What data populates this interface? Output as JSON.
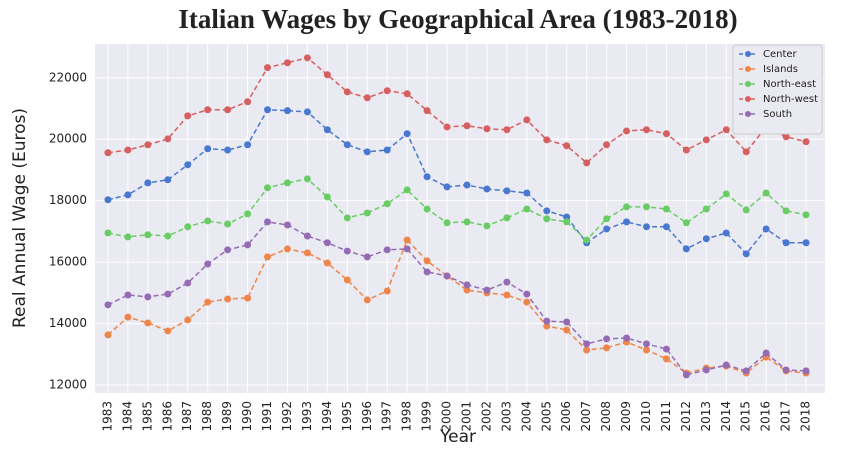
{
  "chart_data": {
    "type": "line",
    "title": "Italian Wages by Geographical Area (1983-2018)",
    "x_label": "Year",
    "y_label": "Real Annual Wage (Euros)",
    "x": [
      1983,
      1984,
      1985,
      1986,
      1987,
      1988,
      1989,
      1990,
      1991,
      1992,
      1993,
      1994,
      1995,
      1996,
      1997,
      1998,
      1999,
      2000,
      2001,
      2002,
      2003,
      2004,
      2005,
      2006,
      2007,
      2008,
      2009,
      2010,
      2011,
      2012,
      2013,
      2014,
      2015,
      2016,
      2017,
      2018
    ],
    "xlim": [
      1982.35,
      2018.95
    ],
    "xticks": [
      1983,
      1984,
      1985,
      1986,
      1987,
      1988,
      1989,
      1990,
      1991,
      1992,
      1993,
      1994,
      1995,
      1996,
      1997,
      1998,
      1999,
      2000,
      2001,
      2002,
      2003,
      2004,
      2005,
      2006,
      2007,
      2008,
      2009,
      2010,
      2011,
      2012,
      2013,
      2014,
      2015,
      2016,
      2017,
      2018
    ],
    "ylim": [
      11740,
      23100
    ],
    "yticks": [
      12000,
      14000,
      16000,
      18000,
      20000,
      22000
    ],
    "grid": true,
    "legend": "upper right",
    "series": [
      {
        "name": "Center",
        "color": "#4878d0",
        "values": [
          18030,
          18190,
          18580,
          18680,
          19170,
          19690,
          19650,
          19820,
          20960,
          20930,
          20890,
          20310,
          19820,
          19590,
          19650,
          20180,
          18780,
          18450,
          18510,
          18380,
          18320,
          18250,
          17670,
          17470,
          16630,
          17080,
          17310,
          17150,
          17150,
          16430,
          16760,
          16950,
          16270,
          17080,
          16630,
          16630
        ]
      },
      {
        "name": "Islands",
        "color": "#ee854a",
        "values": [
          13630,
          14210,
          14020,
          13760,
          14120,
          14700,
          14800,
          14830,
          16170,
          16430,
          16300,
          15970,
          15420,
          14770,
          15060,
          16720,
          16040,
          15550,
          15090,
          15000,
          14930,
          14700,
          13920,
          13790,
          13140,
          13210,
          13400,
          13140,
          12850,
          12390,
          12550,
          12620,
          12390,
          12910,
          12460,
          12390
        ]
      },
      {
        "name": "North-east",
        "color": "#6acc64",
        "values": [
          16950,
          16820,
          16890,
          16850,
          17150,
          17340,
          17240,
          17570,
          18420,
          18580,
          18710,
          18120,
          17440,
          17600,
          17900,
          18350,
          17730,
          17280,
          17310,
          17180,
          17440,
          17730,
          17410,
          17310,
          16720,
          17410,
          17800,
          17800,
          17730,
          17280,
          17730,
          18220,
          17700,
          18250,
          17670,
          17540
        ]
      },
      {
        "name": "North-west",
        "color": "#d65f5f",
        "values": [
          19560,
          19650,
          19820,
          20010,
          20760,
          20960,
          20960,
          21220,
          22330,
          22490,
          22650,
          22100,
          21540,
          21350,
          21580,
          21480,
          20930,
          20400,
          20440,
          20340,
          20310,
          20630,
          19980,
          19790,
          19230,
          19820,
          20270,
          20310,
          20180,
          19650,
          19980,
          20310,
          19590,
          20400,
          20080,
          19920
        ]
      },
      {
        "name": "South",
        "color": "#956cb4",
        "values": [
          14610,
          14930,
          14870,
          14960,
          15320,
          15940,
          16400,
          16560,
          17310,
          17210,
          16850,
          16630,
          16360,
          16170,
          16400,
          16430,
          15680,
          15550,
          15260,
          15090,
          15350,
          14960,
          14080,
          14050,
          13340,
          13500,
          13530,
          13340,
          13170,
          12330,
          12490,
          12650,
          12460,
          13040,
          12490,
          12460
        ]
      }
    ]
  }
}
